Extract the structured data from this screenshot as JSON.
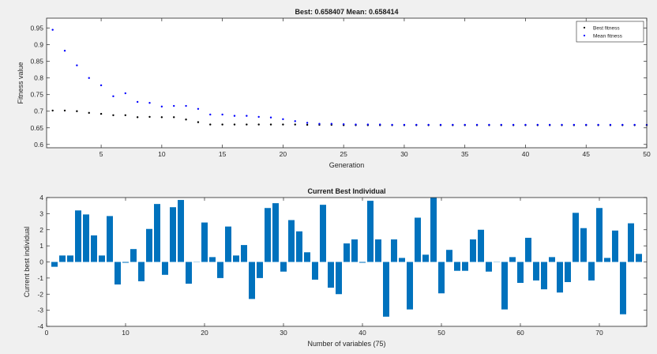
{
  "chart_data": [
    {
      "type": "scatter",
      "title": "Best: 0.658407 Mean: 0.658414",
      "xlabel": "Generation",
      "ylabel": "Fitness value",
      "xlim": [
        0.5,
        50
      ],
      "ylim": [
        0.59,
        0.98
      ],
      "xticks": [
        5,
        10,
        15,
        20,
        25,
        30,
        35,
        40,
        45,
        50
      ],
      "yticks": [
        0.6,
        0.65,
        0.7,
        0.75,
        0.8,
        0.85,
        0.9,
        0.95
      ],
      "grid": false,
      "legend": "top-right",
      "colors": {
        "best": "#000000",
        "mean": "#0000ff",
        "axes_bg": "#ffffff",
        "axes_line": "#262626"
      },
      "series": [
        {
          "name": "Best fitness",
          "marker": "dot",
          "x": [
            1,
            2,
            3,
            4,
            5,
            6,
            7,
            8,
            9,
            10,
            11,
            12,
            13,
            14,
            15,
            16,
            17,
            18,
            19,
            20,
            21,
            22,
            23,
            24,
            25,
            26,
            27,
            28,
            29,
            30,
            31,
            32,
            33,
            34,
            35,
            36,
            37,
            38,
            39,
            40,
            41,
            42,
            43,
            44,
            45,
            46,
            47,
            48,
            49,
            50
          ],
          "values": [
            0.702,
            0.702,
            0.7,
            0.695,
            0.692,
            0.688,
            0.688,
            0.682,
            0.683,
            0.682,
            0.682,
            0.675,
            0.667,
            0.66,
            0.66,
            0.66,
            0.66,
            0.66,
            0.66,
            0.66,
            0.66,
            0.659,
            0.659,
            0.659,
            0.658,
            0.658,
            0.658,
            0.658,
            0.658,
            0.658,
            0.658,
            0.658,
            0.658,
            0.658,
            0.658,
            0.658,
            0.658,
            0.658,
            0.658,
            0.658,
            0.658,
            0.658,
            0.658,
            0.658,
            0.658,
            0.658,
            0.658,
            0.658,
            0.658,
            0.658
          ]
        },
        {
          "name": "Mean fitness",
          "marker": "dot",
          "x": [
            1,
            2,
            3,
            4,
            5,
            6,
            7,
            8,
            9,
            10,
            11,
            12,
            13,
            14,
            15,
            16,
            17,
            18,
            19,
            20,
            21,
            22,
            23,
            24,
            25,
            26,
            27,
            28,
            29,
            30,
            31,
            32,
            33,
            34,
            35,
            36,
            37,
            38,
            39,
            40,
            41,
            42,
            43,
            44,
            45,
            46,
            47,
            48,
            49,
            50
          ],
          "values": [
            0.945,
            0.882,
            0.838,
            0.8,
            0.778,
            0.745,
            0.754,
            0.728,
            0.725,
            0.714,
            0.716,
            0.716,
            0.707,
            0.69,
            0.69,
            0.686,
            0.686,
            0.683,
            0.681,
            0.676,
            0.67,
            0.665,
            0.662,
            0.662,
            0.661,
            0.66,
            0.66,
            0.66,
            0.659,
            0.659,
            0.659,
            0.659,
            0.659,
            0.659,
            0.659,
            0.659,
            0.659,
            0.659,
            0.659,
            0.659,
            0.659,
            0.659,
            0.659,
            0.659,
            0.659,
            0.659,
            0.659,
            0.659,
            0.659,
            0.659
          ]
        }
      ]
    },
    {
      "type": "bar",
      "title": "Current Best Individual",
      "xlabel": "Number of variables (75)",
      "ylabel": "Current best individual",
      "xlim": [
        0,
        76
      ],
      "ylim": [
        -4,
        4
      ],
      "xticks": [
        0,
        10,
        20,
        30,
        40,
        50,
        60,
        70
      ],
      "yticks": [
        -4,
        -3,
        -2,
        -1,
        0,
        1,
        2,
        3,
        4
      ],
      "grid": false,
      "colors": {
        "bar": "#0072bd",
        "axes_bg": "#ffffff",
        "axes_line": "#262626"
      },
      "x": [
        1,
        2,
        3,
        4,
        5,
        6,
        7,
        8,
        9,
        10,
        11,
        12,
        13,
        14,
        15,
        16,
        17,
        18,
        19,
        20,
        21,
        22,
        23,
        24,
        25,
        26,
        27,
        28,
        29,
        30,
        31,
        32,
        33,
        34,
        35,
        36,
        37,
        38,
        39,
        40,
        41,
        42,
        43,
        44,
        45,
        46,
        47,
        48,
        49,
        50,
        51,
        52,
        53,
        54,
        55,
        56,
        57,
        58,
        59,
        60,
        61,
        62,
        63,
        64,
        65,
        66,
        67,
        68,
        69,
        70,
        71,
        72,
        73,
        74,
        75
      ],
      "values": [
        -0.3,
        0.4,
        0.4,
        3.2,
        2.95,
        1.65,
        0.4,
        2.85,
        -1.4,
        -0.05,
        0.8,
        -1.2,
        2.05,
        3.6,
        -0.8,
        3.4,
        3.85,
        -1.35,
        0.0,
        2.45,
        0.3,
        -1.0,
        2.2,
        0.4,
        1.05,
        -2.3,
        -1.0,
        3.35,
        3.65,
        -0.6,
        2.6,
        1.9,
        0.6,
        -1.1,
        3.55,
        -1.6,
        -2.0,
        1.15,
        1.4,
        -0.05,
        3.8,
        1.4,
        -3.4,
        1.4,
        0.25,
        -2.95,
        2.75,
        0.45,
        4.0,
        -1.95,
        0.75,
        -0.55,
        -0.55,
        1.4,
        2.0,
        -0.6,
        0.0,
        -2.95,
        0.3,
        -1.3,
        1.5,
        -1.15,
        -1.7,
        0.3,
        -1.9,
        -1.25,
        3.05,
        2.1,
        -1.15,
        3.35,
        0.25,
        1.95,
        -3.25,
        2.4,
        0.5
      ]
    }
  ]
}
